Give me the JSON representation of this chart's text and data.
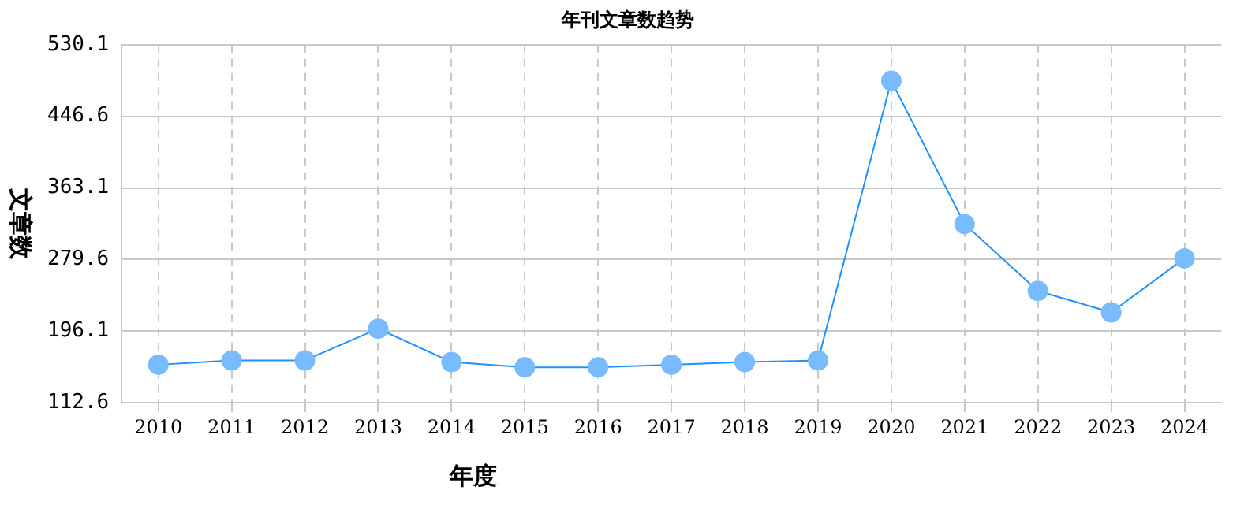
{
  "chart_data": {
    "type": "line",
    "title": "年刊文章数趋势",
    "xlabel": "年度",
    "ylabel": "文章数",
    "categories": [
      "2010",
      "2011",
      "2012",
      "2013",
      "2014",
      "2015",
      "2016",
      "2017",
      "2018",
      "2019",
      "2020",
      "2021",
      "2022",
      "2023",
      "2024"
    ],
    "series": [
      {
        "color": "#1e90ff",
        "values": [
          157,
          162,
          162,
          199,
          160,
          154,
          154,
          157,
          160,
          162,
          488,
          321,
          243,
          218,
          281
        ]
      }
    ],
    "ylim": [
      112.6,
      530.1
    ],
    "yticks": [
      112.6,
      196.1,
      279.6,
      363.1,
      446.6,
      530.1
    ],
    "grid": true,
    "legend": false,
    "marker": "circle",
    "line_style": "solid"
  }
}
